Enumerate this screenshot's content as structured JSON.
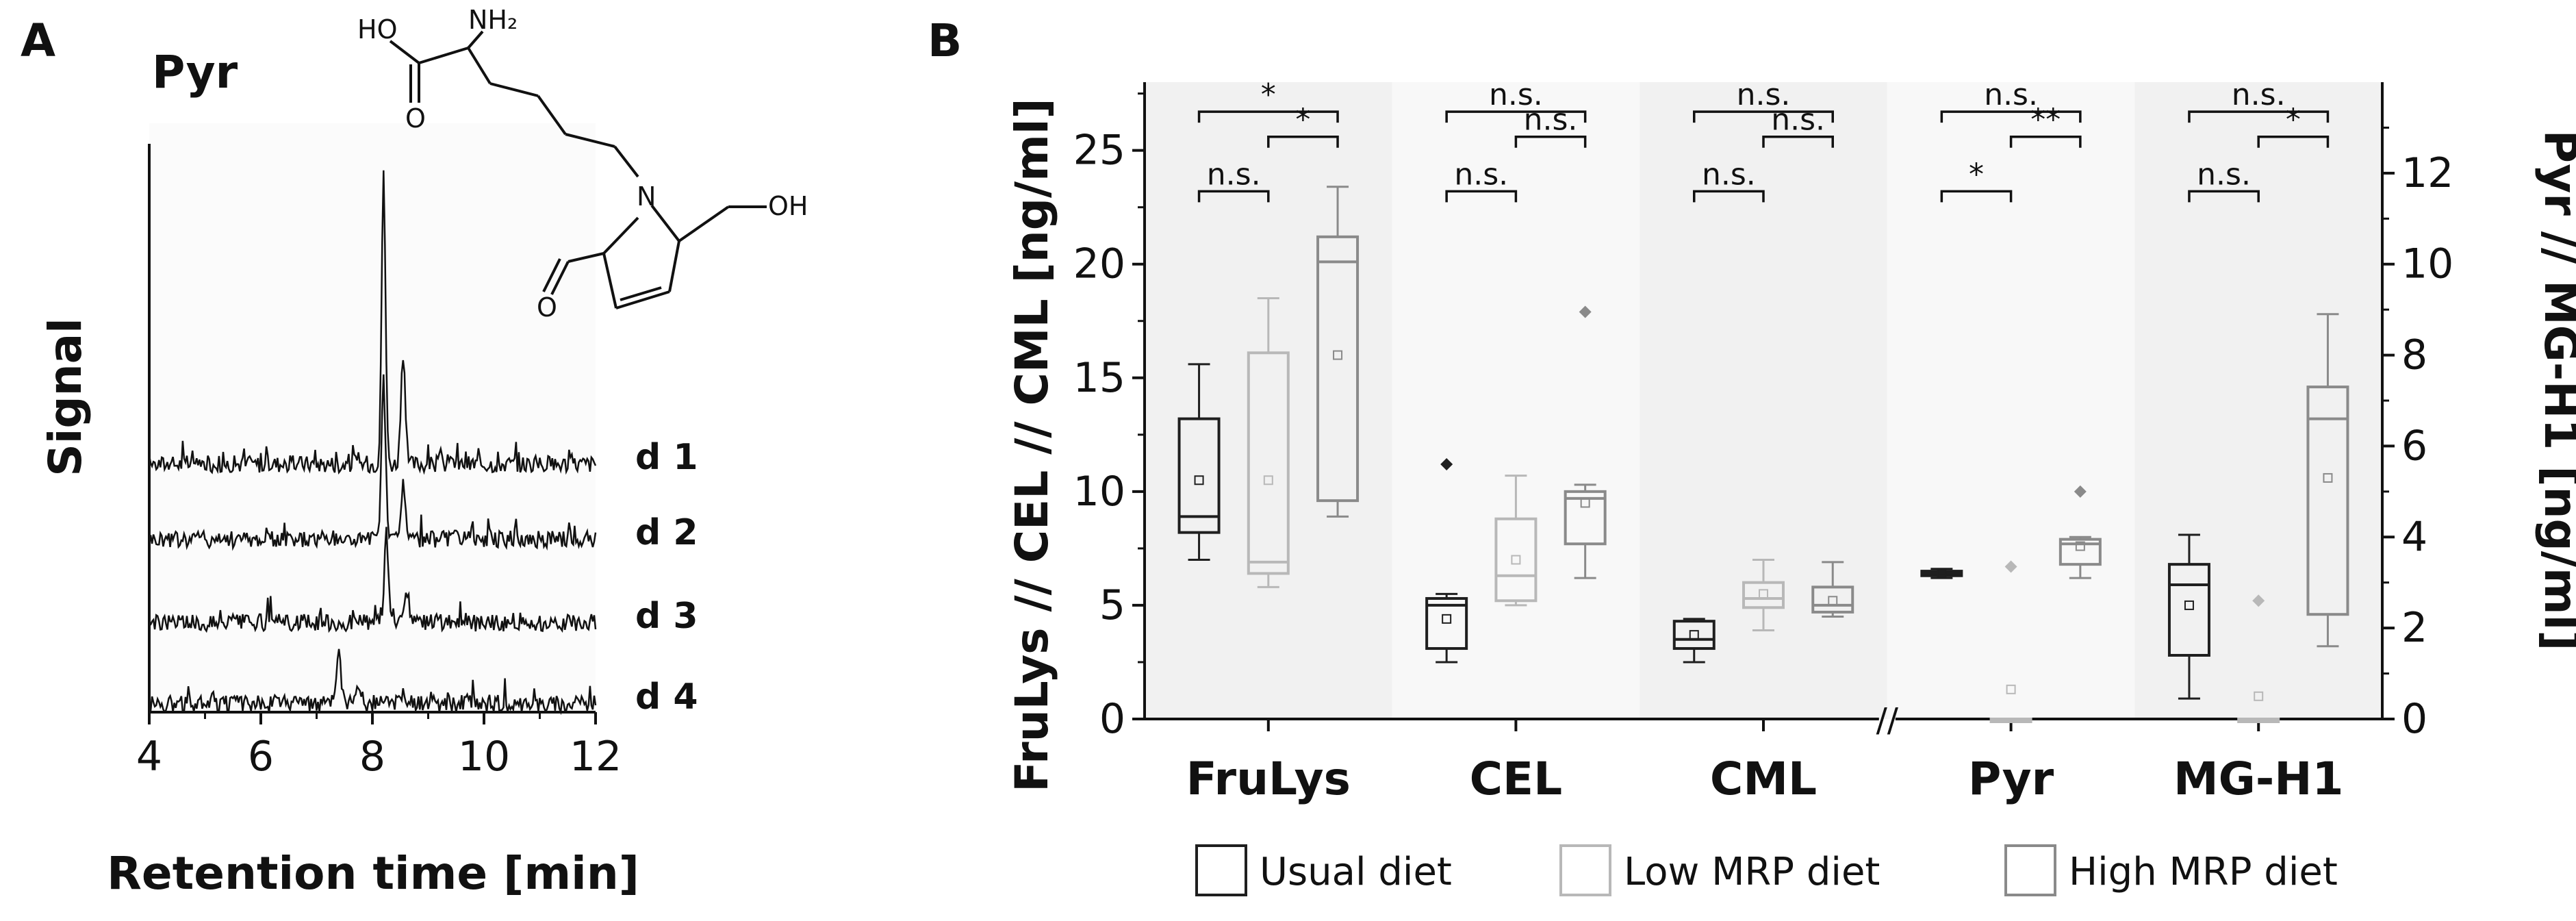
{
  "colors": {
    "usual": "#1f1f1f",
    "low": "#b8b8b8",
    "high": "#8a8a8a",
    "panel_a": "#fbfbfb",
    "panel_b": "#f1f1f1",
    "ink": "#111111"
  },
  "chart_data": [
    {
      "panel": "A",
      "type": "line",
      "title": "Pyr",
      "xlabel": "Retention time [min]",
      "ylabel": "Signal",
      "xlim": [
        4,
        12
      ],
      "xticks": [
        "4",
        "6",
        "8",
        "10",
        "12"
      ],
      "structure": {
        "labels": [
          "HO",
          "NH₂",
          "O",
          "N",
          "OH",
          "O"
        ]
      },
      "series": [
        {
          "name": "d 1",
          "peak_rt": 8.2,
          "peak_height": 1.0
        },
        {
          "name": "d 2",
          "peak_rt": 8.2,
          "peak_height": 0.55
        },
        {
          "name": "d 3",
          "peak_rt": 8.25,
          "peak_height": 0.3
        },
        {
          "name": "d 4",
          "peak_rt": 7.4,
          "peak_height": 0.18
        }
      ]
    },
    {
      "panel": "B",
      "type": "box",
      "ylabel_left": "FruLys // CEL // CML [ng/ml]",
      "ylabel_right": "Pyr // MG-H1 [ng/ml]",
      "ylim_left": [
        0,
        28
      ],
      "ylim_right": [
        0,
        14
      ],
      "yticks_left": [
        "0",
        "5",
        "10",
        "15",
        "20",
        "25"
      ],
      "yticks_right": [
        "0",
        "2",
        "4",
        "6",
        "8",
        "10",
        "12"
      ],
      "categories": [
        "FruLys",
        "CEL",
        "CML",
        "Pyr",
        "MG-H1"
      ],
      "category_axis": [
        "left",
        "left",
        "left",
        "right",
        "right"
      ],
      "groups": [
        "Usual diet",
        "Low MRP diet",
        "High MRP diet"
      ],
      "boxes": [
        [
          {
            "min": 7.0,
            "q1": 8.2,
            "median": 8.9,
            "q3": 13.2,
            "max": 15.6,
            "mean": 10.5
          },
          {
            "min": 5.8,
            "q1": 6.4,
            "median": 6.9,
            "q3": 16.1,
            "max": 18.5,
            "mean": 10.5
          },
          {
            "min": 8.9,
            "q1": 9.6,
            "median": 20.1,
            "q3": 21.2,
            "max": 23.4,
            "mean": 16.0
          }
        ],
        [
          {
            "min": 2.5,
            "q1": 3.1,
            "median": 5.0,
            "q3": 5.3,
            "max": 5.5,
            "mean": 4.4,
            "outliers": [
              11.2
            ]
          },
          {
            "min": 5.0,
            "q1": 5.2,
            "median": 6.3,
            "q3": 8.8,
            "max": 10.7,
            "mean": 7.0
          },
          {
            "min": 6.2,
            "q1": 7.7,
            "median": 9.7,
            "q3": 10.0,
            "max": 10.3,
            "mean": 9.5,
            "outliers": [
              17.9
            ]
          }
        ],
        [
          {
            "min": 2.5,
            "q1": 3.1,
            "median": 3.5,
            "q3": 4.3,
            "max": 4.4,
            "mean": 3.7
          },
          {
            "min": 3.9,
            "q1": 4.9,
            "median": 5.3,
            "q3": 6.0,
            "max": 7.0,
            "mean": 5.5
          },
          {
            "min": 4.5,
            "q1": 4.7,
            "median": 5.0,
            "q3": 5.8,
            "max": 6.9,
            "mean": 5.2
          }
        ],
        [
          {
            "min": 3.1,
            "q1": 3.15,
            "median": 3.2,
            "q3": 3.25,
            "max": 3.3,
            "mean": 3.2
          },
          {
            "min": 0,
            "q1": 0,
            "median": 0,
            "q3": 0,
            "max": 0,
            "mean": 0.65,
            "outliers": [
              3.35
            ]
          },
          {
            "min": 3.1,
            "q1": 3.4,
            "median": 3.85,
            "q3": 3.95,
            "max": 4.0,
            "mean": 3.8,
            "outliers": [
              5.0
            ]
          }
        ],
        [
          {
            "min": 0.45,
            "q1": 1.4,
            "median": 2.95,
            "q3": 3.4,
            "max": 4.05,
            "mean": 2.5
          },
          {
            "min": 0,
            "q1": 0,
            "median": 0,
            "q3": 0,
            "max": 0,
            "mean": 0.5,
            "outliers": [
              2.6
            ]
          },
          {
            "min": 1.6,
            "q1": 2.3,
            "median": 6.6,
            "q3": 7.3,
            "max": 8.9,
            "mean": 5.3
          }
        ]
      ],
      "significance": [
        [
          {
            "from": 0,
            "to": 2,
            "label": "*",
            "level": 3
          },
          {
            "from": 1,
            "to": 2,
            "label": "*",
            "level": 2
          },
          {
            "from": 0,
            "to": 1,
            "label": "n.s.",
            "level": 1
          }
        ],
        [
          {
            "from": 0,
            "to": 2,
            "label": "n.s.",
            "level": 3
          },
          {
            "from": 1,
            "to": 2,
            "label": "n.s.",
            "level": 2
          },
          {
            "from": 0,
            "to": 1,
            "label": "n.s.",
            "level": 1
          }
        ],
        [
          {
            "from": 0,
            "to": 2,
            "label": "n.s.",
            "level": 3
          },
          {
            "from": 1,
            "to": 2,
            "label": "n.s.",
            "level": 2
          },
          {
            "from": 0,
            "to": 1,
            "label": "n.s.",
            "level": 1
          }
        ],
        [
          {
            "from": 0,
            "to": 2,
            "label": "n.s.",
            "level": 3
          },
          {
            "from": 1,
            "to": 2,
            "label": "**",
            "level": 2
          },
          {
            "from": 0,
            "to": 1,
            "label": "*",
            "level": 1
          }
        ],
        [
          {
            "from": 0,
            "to": 2,
            "label": "n.s.",
            "level": 3
          },
          {
            "from": 1,
            "to": 2,
            "label": "*",
            "level": 2
          },
          {
            "from": 0,
            "to": 1,
            "label": "n.s.",
            "level": 1
          }
        ]
      ],
      "axis_break": "//"
    }
  ]
}
